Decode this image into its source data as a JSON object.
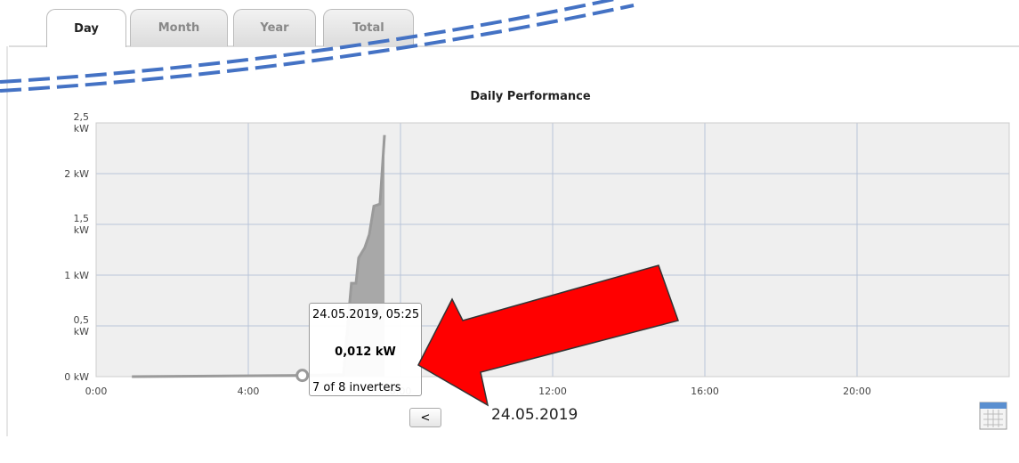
{
  "tabs": [
    "Day",
    "Month",
    "Year",
    "Total"
  ],
  "chart_data": {
    "type": "area",
    "title": "Daily Performance",
    "x": [
      0.94,
      5.42,
      6.5,
      6.6,
      6.71,
      6.83,
      6.9,
      7.06,
      7.18,
      7.3,
      7.46,
      7.58
    ],
    "values": [
      0,
      0.012,
      0.02,
      0.45,
      0.92,
      0.92,
      1.17,
      1.27,
      1.4,
      1.68,
      1.7,
      2.38
    ],
    "color": "#a8a8a8",
    "xlim": [
      0,
      24
    ],
    "xticks": [
      {
        "value": 0,
        "label": "0:00"
      },
      {
        "value": 4,
        "label": "4:00"
      },
      {
        "value": 8,
        "label": "8:00"
      },
      {
        "value": 12,
        "label": "12:00"
      },
      {
        "value": 16,
        "label": "16:00"
      },
      {
        "value": 20,
        "label": "20:00"
      }
    ],
    "ylim": [
      0,
      2.5
    ],
    "yticks": [
      {
        "value": 0,
        "label": "0 kW"
      },
      {
        "value": 0.5,
        "label": "0,5 kW"
      },
      {
        "value": 1,
        "label": "1 kW"
      },
      {
        "value": 1.5,
        "label": "1,5 kW"
      },
      {
        "value": 2,
        "label": "2 kW"
      },
      {
        "value": 2.5,
        "label": "2,5 kW"
      }
    ],
    "grid": true
  },
  "tooltip": {
    "title": "24.05.2019, 05:25",
    "value": "0,012 kW",
    "inverters": "7 of 8 inverters"
  },
  "nav_prev": "<",
  "date": "24.05.2019"
}
